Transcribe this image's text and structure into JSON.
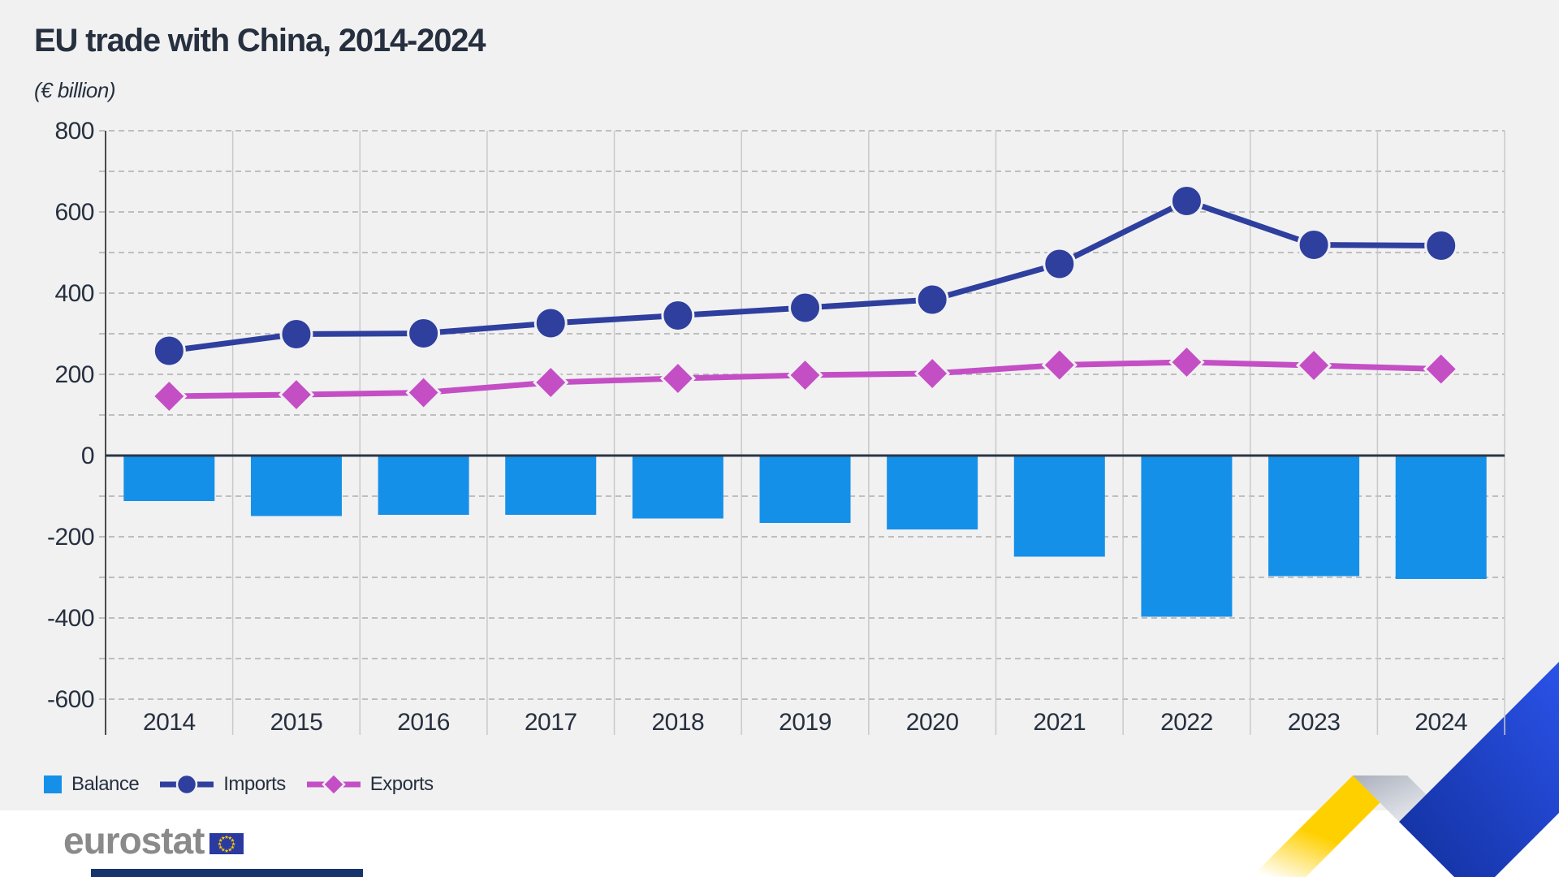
{
  "title": "EU trade with China, 2014-2024",
  "subtitle": "(€ billion)",
  "chart_data": {
    "type": "bar-line-combo",
    "categories": [
      "2014",
      "2015",
      "2016",
      "2017",
      "2018",
      "2019",
      "2020",
      "2021",
      "2022",
      "2023",
      "2024"
    ],
    "series": [
      {
        "name": "Balance",
        "type": "bar",
        "marker": "square",
        "color": "#1590e9",
        "values": [
          -112,
          -149,
          -146,
          -146,
          -155,
          -166,
          -182,
          -249,
          -397,
          -297,
          -304
        ]
      },
      {
        "name": "Imports",
        "type": "line",
        "marker": "circle",
        "color": "#2e3f9e",
        "values": [
          258,
          299,
          301,
          326,
          345,
          364,
          384,
          472,
          627,
          519,
          517
        ]
      },
      {
        "name": "Exports",
        "type": "line",
        "marker": "diamond",
        "color": "#c44fc5",
        "values": [
          146,
          150,
          155,
          180,
          190,
          198,
          202,
          223,
          230,
          222,
          213
        ]
      }
    ],
    "title": "EU trade with China, 2014-2024",
    "xlabel": "",
    "ylabel": "€ billion",
    "ylim": [
      -600,
      800
    ],
    "ytick_step": 200,
    "grid_step": 100,
    "grid": "horizontal dashed gridlines every 100, solid light vertical column separators, solid dark zero line",
    "legend_position": "bottom-left"
  },
  "legend": {
    "items": [
      {
        "label": "Balance"
      },
      {
        "label": "Imports"
      },
      {
        "label": "Exports"
      }
    ]
  },
  "branding": {
    "logo_text": "eurostat"
  },
  "colors": {
    "background": "#f1f1f2",
    "text_dark": "#26303f",
    "balance": "#1590e9",
    "imports": "#2e3f9e",
    "exports": "#c44fc5",
    "gridline": "#aeaeae",
    "column_separator": "#c9c9c9",
    "axis_line": "#4a4a4a",
    "zero_line": "#2b3646",
    "logo_gray": "#8a8a8a",
    "flag_blue": "#2b3aa0",
    "star_yellow": "#ffcc00",
    "bottom_bar_navy": "#16336e",
    "ribbon_yellow": "#ffd000",
    "ribbon_blue": "#1f46d6",
    "ribbon_silver": "#c3c8d1"
  }
}
